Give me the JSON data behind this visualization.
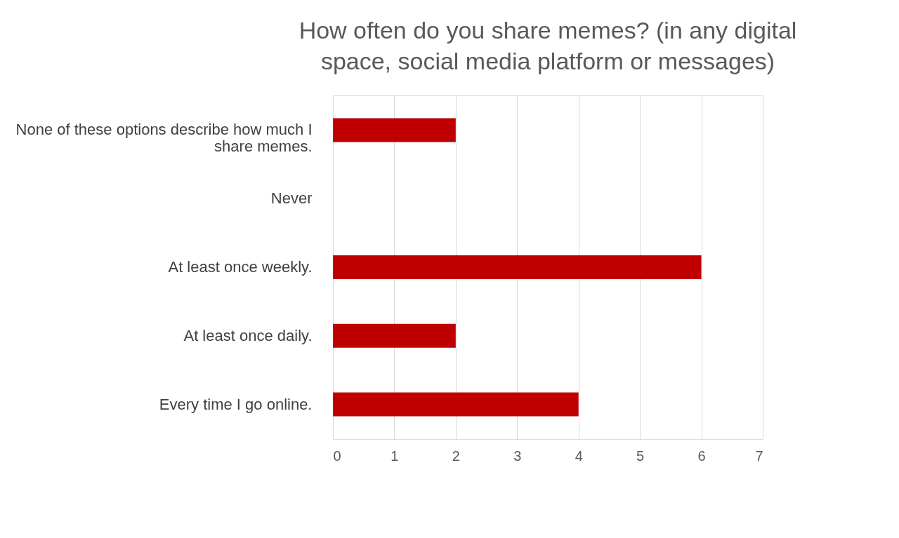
{
  "chart_data": {
    "type": "bar",
    "orientation": "horizontal",
    "title": "How often do you share memes? (in any digital space, social media platform or messages)",
    "categories": [
      "None of these options describe how much I share memes.",
      "Never",
      "At least once weekly.",
      "At least once daily.",
      "Every time I go online."
    ],
    "values": [
      2,
      0,
      6,
      2,
      4
    ],
    "color": "#c00000",
    "xlim": [
      0,
      7
    ],
    "xticks": [
      0,
      1,
      2,
      3,
      4,
      5,
      6,
      7
    ],
    "grid": "x",
    "legend": false
  }
}
